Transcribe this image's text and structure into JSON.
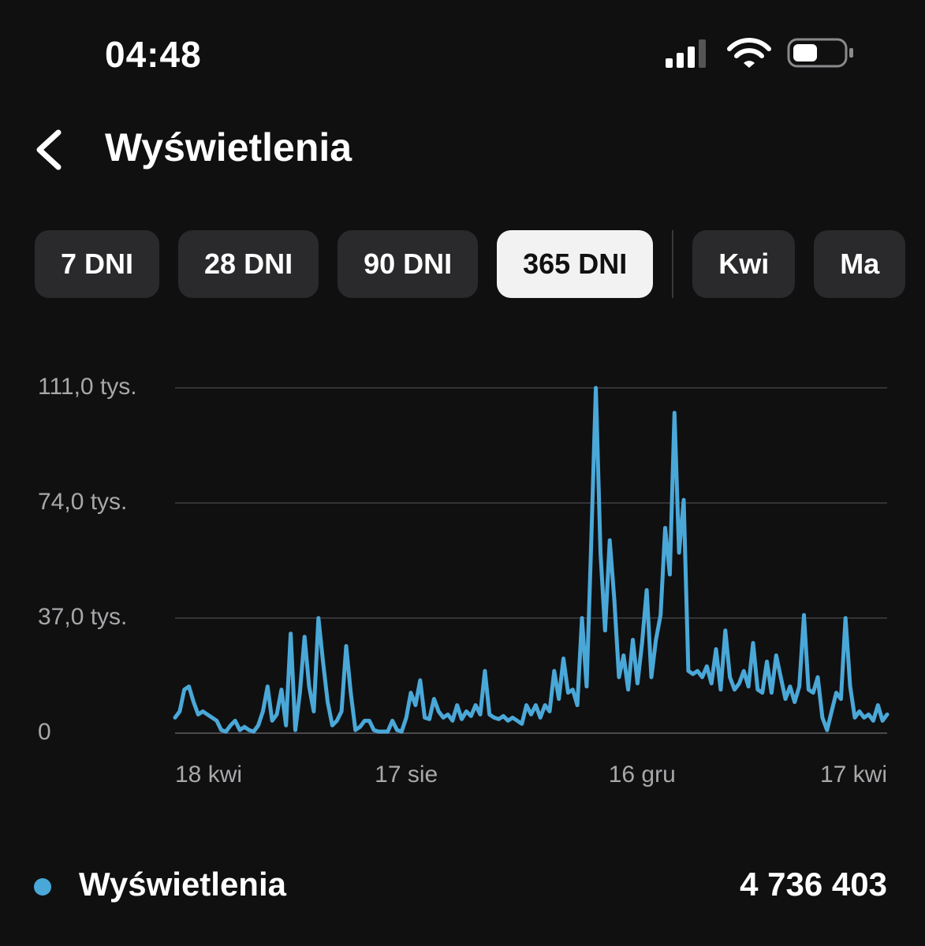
{
  "status_bar": {
    "time": "04:48"
  },
  "header": {
    "title": "Wyświetlenia"
  },
  "ranges": [
    "7 DNI",
    "28 DNI",
    "90 DNI",
    "365 DNI"
  ],
  "selected_range": 3,
  "months": [
    "Kwi",
    "Ma"
  ],
  "chart_data": {
    "type": "line",
    "categories": [
      "18 kwi",
      null,
      null,
      null,
      null,
      null,
      null,
      null,
      null,
      null,
      null,
      null,
      null,
      null,
      null,
      null,
      null,
      null,
      null,
      null,
      null,
      null,
      null,
      null,
      null,
      null,
      null,
      null,
      null,
      null,
      null,
      null,
      null,
      null,
      null,
      null,
      null,
      null,
      null,
      null,
      null,
      null,
      null,
      null,
      null,
      null,
      null,
      null,
      null,
      null,
      "17 sie",
      null,
      null,
      null,
      null,
      null,
      null,
      null,
      null,
      null,
      null,
      null,
      null,
      null,
      null,
      null,
      null,
      null,
      null,
      null,
      null,
      null,
      null,
      null,
      null,
      null,
      null,
      null,
      null,
      null,
      null,
      null,
      null,
      null,
      null,
      null,
      null,
      null,
      null,
      null,
      null,
      null,
      null,
      null,
      null,
      null,
      null,
      null,
      null,
      null,
      null,
      "16 gru",
      null,
      null,
      null,
      null,
      null,
      null,
      null,
      null,
      null,
      null,
      null,
      null,
      null,
      null,
      null,
      null,
      null,
      null,
      null,
      null,
      null,
      null,
      null,
      null,
      null,
      null,
      null,
      null,
      null,
      null,
      null,
      null,
      null,
      null,
      null,
      null,
      null,
      null,
      null,
      null,
      null,
      null,
      null,
      null,
      null,
      null,
      null,
      null,
      null,
      null,
      null,
      null,
      "17 kwi"
    ],
    "series": [
      {
        "name": "Wyświetlenia",
        "color": "#4aa8d8",
        "total": "4 736 403",
        "values": [
          5,
          7,
          14,
          15,
          10,
          6,
          7,
          6,
          5,
          4,
          1,
          0.5,
          2.5,
          4,
          1,
          2,
          1,
          0.5,
          2.5,
          7,
          15,
          4,
          6,
          14,
          2.5,
          32,
          1,
          13,
          31,
          15,
          7,
          37,
          23,
          10,
          2.5,
          4,
          7,
          28,
          13,
          1,
          2,
          4,
          4,
          1,
          0.5,
          0.5,
          0.5,
          4,
          1,
          0.5,
          5,
          13,
          9,
          17,
          5,
          4.5,
          11,
          7,
          5,
          6,
          4,
          9,
          4.5,
          7,
          5.5,
          9,
          6,
          20,
          6,
          5,
          4.5,
          5.5,
          4,
          5,
          4,
          3,
          9,
          6,
          9,
          5,
          9,
          7,
          20,
          11,
          24,
          13,
          14,
          9,
          37,
          15,
          61,
          111,
          58,
          33,
          62,
          43,
          18,
          25,
          14,
          30,
          16,
          29,
          46,
          18,
          30,
          38,
          66,
          51,
          103,
          58,
          75,
          20,
          19,
          20,
          18,
          21.5,
          16,
          27,
          14,
          33,
          18,
          14,
          16,
          20,
          15,
          29,
          14,
          13,
          23,
          13,
          25,
          18,
          11,
          15,
          10,
          15,
          38,
          14,
          13,
          18,
          5,
          1,
          7,
          13,
          11,
          37,
          15,
          5,
          7,
          5,
          6,
          4,
          9,
          4,
          6
        ]
      }
    ],
    "ylim": [
      0,
      111
    ],
    "yticks": [
      0,
      {
        "value": 37,
        "label": "37,0 tys."
      },
      {
        "value": 74,
        "label": "74,0 tys."
      },
      {
        "value": 111,
        "label": "111,0 tys."
      }
    ],
    "grid": true
  }
}
